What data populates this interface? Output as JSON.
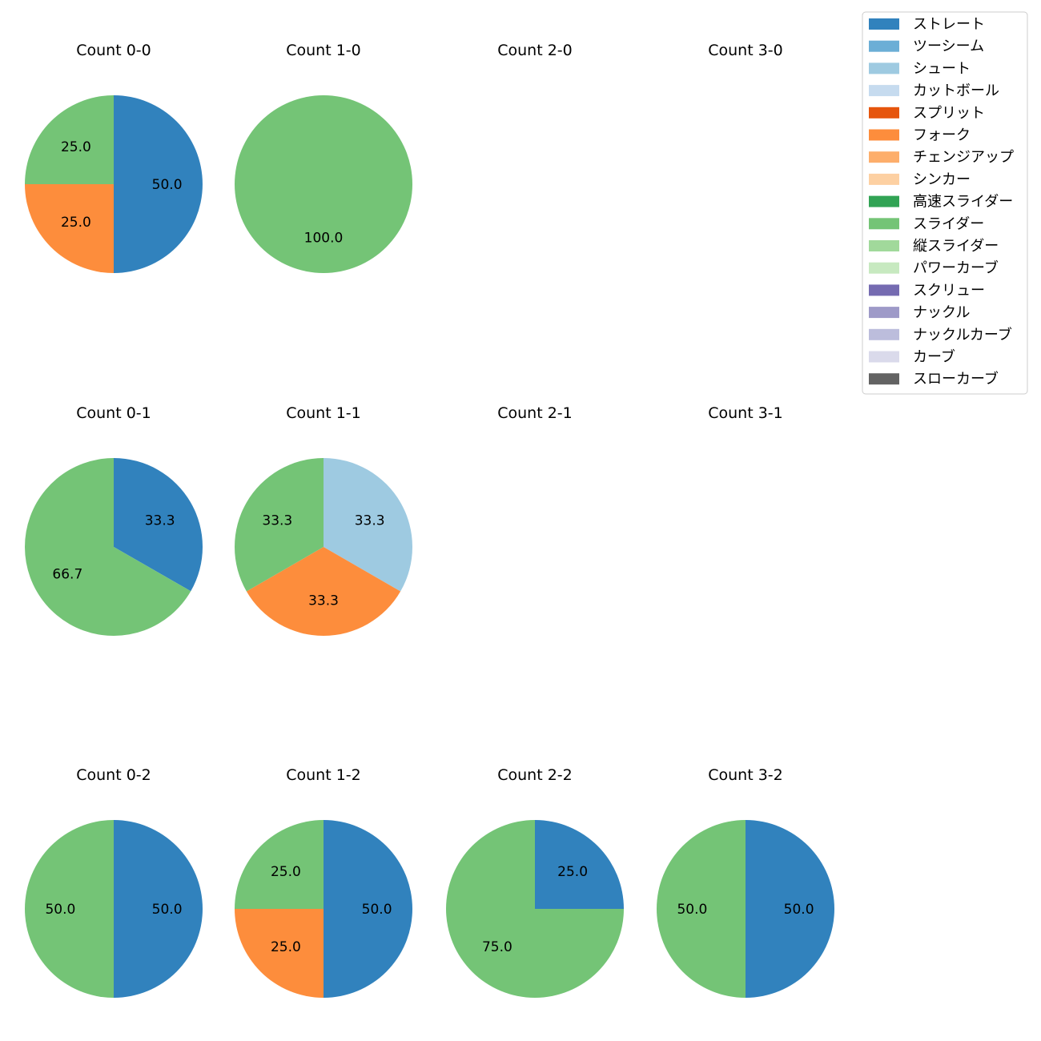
{
  "chart_data": {
    "type": "pie",
    "start_angle_deg": 90,
    "direction": "clockwise",
    "pitch_types": [
      {
        "name": "ストレート",
        "color": "#3182bd"
      },
      {
        "name": "ツーシーム",
        "color": "#6baed6"
      },
      {
        "name": "シュート",
        "color": "#9ecae1"
      },
      {
        "name": "カットボール",
        "color": "#c6dbef"
      },
      {
        "name": "スプリット",
        "color": "#e6550d"
      },
      {
        "name": "フォーク",
        "color": "#fd8d3c"
      },
      {
        "name": "チェンジアップ",
        "color": "#fdae6b"
      },
      {
        "name": "シンカー",
        "color": "#fdd0a2"
      },
      {
        "name": "高速スライダー",
        "color": "#31a354"
      },
      {
        "name": "スライダー",
        "color": "#74c476"
      },
      {
        "name": "縦スライダー",
        "color": "#a1d99b"
      },
      {
        "name": "パワーカーブ",
        "color": "#c7e9c0"
      },
      {
        "name": "スクリュー",
        "color": "#756bb1"
      },
      {
        "name": "ナックル",
        "color": "#9e9ac8"
      },
      {
        "name": "ナックルカーブ",
        "color": "#bcbddc"
      },
      {
        "name": "カーブ",
        "color": "#dadaeb"
      },
      {
        "name": "スローカーブ",
        "color": "#636363"
      }
    ],
    "subplots": [
      {
        "title": "Count 0-0",
        "slices": [
          {
            "pitch": "ストレート",
            "value": 50.0,
            "label": "50.0"
          },
          {
            "pitch": "フォーク",
            "value": 25.0,
            "label": "25.0"
          },
          {
            "pitch": "スライダー",
            "value": 25.0,
            "label": "25.0"
          }
        ]
      },
      {
        "title": "Count 1-0",
        "slices": [
          {
            "pitch": "スライダー",
            "value": 100.0,
            "label": "100.0"
          }
        ]
      },
      {
        "title": "Count 2-0",
        "slices": []
      },
      {
        "title": "Count 3-0",
        "slices": []
      },
      {
        "title": "Count 0-1",
        "slices": [
          {
            "pitch": "ストレート",
            "value": 33.3,
            "label": "33.3"
          },
          {
            "pitch": "スライダー",
            "value": 66.7,
            "label": "66.7"
          }
        ]
      },
      {
        "title": "Count 1-1",
        "slices": [
          {
            "pitch": "シュート",
            "value": 33.3,
            "label": "33.3"
          },
          {
            "pitch": "フォーク",
            "value": 33.3,
            "label": "33.3"
          },
          {
            "pitch": "スライダー",
            "value": 33.3,
            "label": "33.3"
          }
        ]
      },
      {
        "title": "Count 2-1",
        "slices": []
      },
      {
        "title": "Count 3-1",
        "slices": []
      },
      {
        "title": "Count 0-2",
        "slices": [
          {
            "pitch": "ストレート",
            "value": 50.0,
            "label": "50.0"
          },
          {
            "pitch": "スライダー",
            "value": 50.0,
            "label": "50.0"
          }
        ]
      },
      {
        "title": "Count 1-2",
        "slices": [
          {
            "pitch": "ストレート",
            "value": 50.0,
            "label": "50.0"
          },
          {
            "pitch": "フォーク",
            "value": 25.0,
            "label": "25.0"
          },
          {
            "pitch": "スライダー",
            "value": 25.0,
            "label": "25.0"
          }
        ]
      },
      {
        "title": "Count 2-2",
        "slices": [
          {
            "pitch": "ストレート",
            "value": 25.0,
            "label": "25.0"
          },
          {
            "pitch": "スライダー",
            "value": 75.0,
            "label": "75.0"
          }
        ]
      },
      {
        "title": "Count 3-2",
        "slices": [
          {
            "pitch": "ストレート",
            "value": 50.0,
            "label": "50.0"
          },
          {
            "pitch": "スライダー",
            "value": 50.0,
            "label": "50.0"
          }
        ]
      }
    ],
    "legend_position": "top-right"
  }
}
